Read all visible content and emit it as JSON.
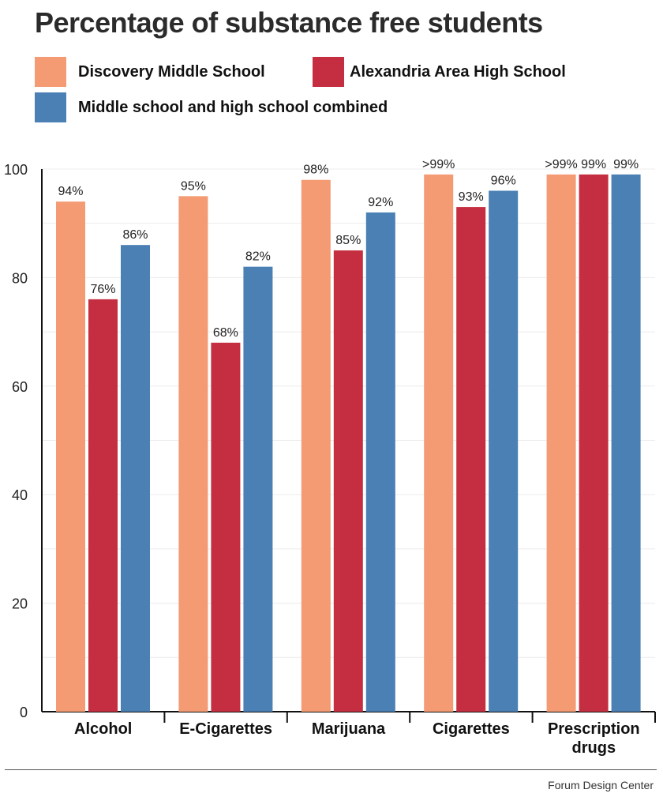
{
  "title": "Percentage of substance free students",
  "legend": [
    {
      "label": "Discovery Middle School",
      "color": "#f49b74"
    },
    {
      "label": "Alexandria Area High School",
      "color": "#c42e40"
    },
    {
      "label": "Middle school and high school combined",
      "color": "#4a80b4"
    }
  ],
  "source": "Forum Design Center",
  "chart_data": {
    "type": "bar",
    "title": "Percentage of substance free students",
    "xlabel": "",
    "ylabel": "",
    "ylim": [
      0,
      100
    ],
    "yticks": [
      "0",
      "20",
      "40",
      "60",
      "80",
      "100"
    ],
    "ytick_values": [
      0,
      20,
      40,
      60,
      80,
      100
    ],
    "grid": true,
    "categories": [
      "Alcohol",
      "E-Cigarettes",
      "Marijuana",
      "Cigarettes",
      "Prescription drugs"
    ],
    "category_lines": [
      [
        "Alcohol"
      ],
      [
        "E-Cigarettes"
      ],
      [
        "Marijuana"
      ],
      [
        "Cigarettes"
      ],
      [
        "Prescription",
        "drugs"
      ]
    ],
    "series": [
      {
        "name": "Discovery Middle School",
        "color": "#f49b74",
        "values": [
          94,
          95,
          98,
          99,
          99
        ],
        "labels": [
          "94%",
          "95%",
          "98%",
          ">99%",
          ">99%"
        ]
      },
      {
        "name": "Alexandria Area High School",
        "color": "#c42e40",
        "values": [
          76,
          68,
          85,
          93,
          99
        ],
        "labels": [
          "76%",
          "68%",
          "85%",
          "93%",
          "99%"
        ]
      },
      {
        "name": "Middle school and high school combined",
        "color": "#4a80b4",
        "values": [
          86,
          82,
          92,
          96,
          99
        ],
        "labels": [
          "86%",
          "82%",
          "92%",
          "96%",
          "99%"
        ]
      }
    ]
  }
}
